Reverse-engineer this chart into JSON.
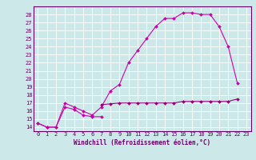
{
  "xlabel": "Windchill (Refroidissement éolien,°C)",
  "bg_color": "#cde8e8",
  "grid_color": "#ffffff",
  "line_color": "#cc00aa",
  "line_color2": "#990077",
  "x_values": [
    0,
    1,
    2,
    3,
    4,
    5,
    6,
    7,
    8,
    9,
    10,
    11,
    12,
    13,
    14,
    15,
    16,
    17,
    18,
    19,
    20,
    21,
    22,
    23
  ],
  "line1_y": [
    14.5,
    14.0,
    14.0,
    16.5,
    16.2,
    15.5,
    15.3,
    15.3,
    null,
    null,
    null,
    null,
    null,
    null,
    null,
    null,
    null,
    null,
    null,
    null,
    null,
    null,
    null,
    null
  ],
  "line2_y": [
    14.5,
    14.0,
    14.0,
    17.0,
    16.5,
    16.0,
    15.5,
    16.5,
    18.5,
    19.3,
    22.0,
    23.5,
    25.0,
    26.5,
    27.5,
    27.5,
    28.2,
    28.2,
    28.0,
    28.0,
    26.5,
    24.0,
    19.5,
    null
  ],
  "line3_y": [
    null,
    null,
    null,
    null,
    null,
    null,
    null,
    16.8,
    16.9,
    17.0,
    17.0,
    17.0,
    17.0,
    17.0,
    17.0,
    17.0,
    17.2,
    17.2,
    17.2,
    17.2,
    17.2,
    17.2,
    17.5,
    null
  ],
  "ylim": [
    13.5,
    29.0
  ],
  "xlim": [
    -0.5,
    23.5
  ],
  "yticks": [
    14,
    15,
    16,
    17,
    18,
    19,
    20,
    21,
    22,
    23,
    24,
    25,
    26,
    27,
    28
  ],
  "xticks": [
    0,
    1,
    2,
    3,
    4,
    5,
    6,
    7,
    8,
    9,
    10,
    11,
    12,
    13,
    14,
    15,
    16,
    17,
    18,
    19,
    20,
    21,
    22,
    23
  ],
  "tick_fontsize": 5,
  "xlabel_fontsize": 5.5,
  "spine_color": "#660066",
  "tick_color": "#660066"
}
